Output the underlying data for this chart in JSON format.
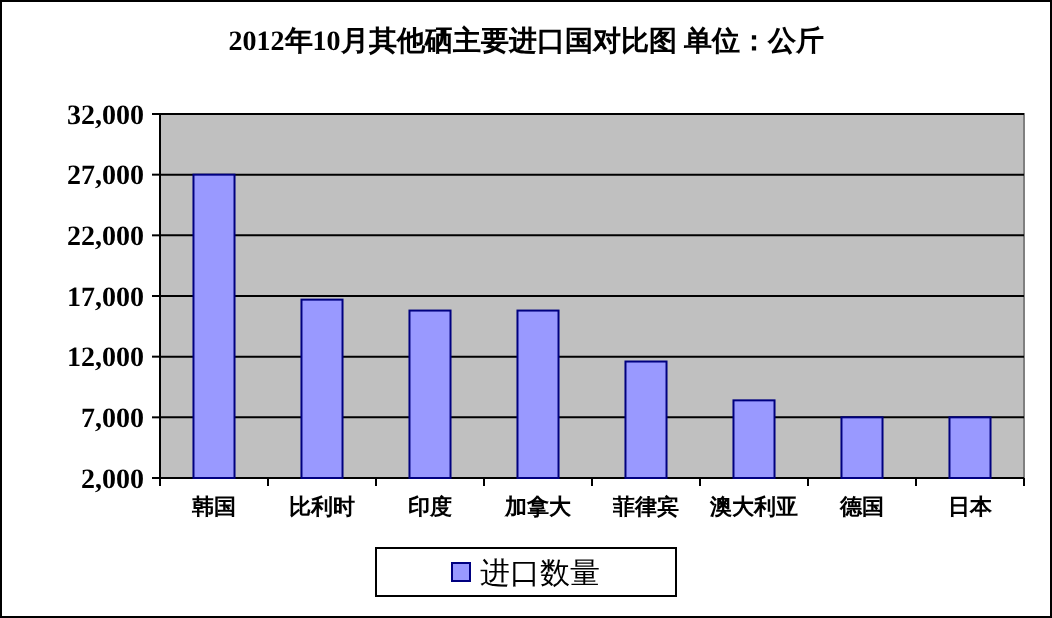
{
  "chart_data": {
    "type": "bar",
    "title": "2012年10月其他硒主要进口国对比图 单位：公斤",
    "categories": [
      "韩国",
      "比利时",
      "印度",
      "加拿大",
      "菲律宾",
      "澳大利亚",
      "德国",
      "日本"
    ],
    "series": [
      {
        "name": "进口数量",
        "color": "#9999ff",
        "values": [
          27000,
          16700,
          15800,
          15800,
          11600,
          8400,
          7000,
          7000
        ]
      }
    ],
    "ylim": [
      2000,
      32000
    ],
    "yticks": [
      {
        "value": 2000,
        "label": "2,000"
      },
      {
        "value": 7000,
        "label": "7,000"
      },
      {
        "value": 12000,
        "label": "12,000"
      },
      {
        "value": 17000,
        "label": "17,000"
      },
      {
        "value": 22000,
        "label": "22,000"
      },
      {
        "value": 27000,
        "label": "27,000"
      },
      {
        "value": 32000,
        "label": "32,000"
      }
    ],
    "grid": "y",
    "legend": "bottom"
  }
}
